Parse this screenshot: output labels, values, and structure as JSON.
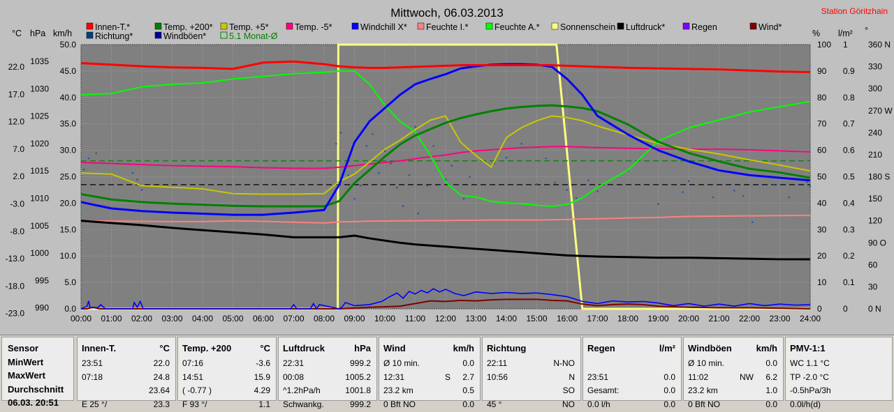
{
  "window": {
    "title": "Mittwoch, 06.03.2013",
    "station": "Station Göritzhain"
  },
  "chart_data": {
    "type": "line",
    "title": "Mittwoch, 06.03.2013",
    "x_ticks": [
      "00:00",
      "01:00",
      "02:00",
      "03:00",
      "04:00",
      "05:00",
      "06:00",
      "07:00",
      "08:00",
      "09:00",
      "10:00",
      "11:00",
      "12:00",
      "13:00",
      "14:00",
      "15:00",
      "16:00",
      "17:00",
      "18:00",
      "19:00",
      "20:00",
      "21:00",
      "22:00",
      "23:00",
      "24:00"
    ],
    "axes": {
      "celsius": {
        "label": "°C",
        "ticks": [
          "22.0",
          "17.0",
          "12.0",
          "7.0",
          "2.0",
          "-3.0",
          "-8.0",
          "-13.0",
          "-18.0",
          "-23.0"
        ],
        "range": [
          -23,
          27
        ]
      },
      "hpa": {
        "label": "hPa",
        "ticks": [
          "1035",
          "1030",
          "1025",
          "1020",
          "1015",
          "1010",
          "1005",
          "1000",
          "995",
          "990"
        ],
        "range": [
          990,
          1038
        ]
      },
      "kmh": {
        "label": "km/h",
        "ticks": [
          "50.0",
          "45.0",
          "40.0",
          "35.0",
          "30.0",
          "25.0",
          "20.0",
          "15.0",
          "10.0",
          "5.0",
          "0.0"
        ],
        "range": [
          0,
          50
        ]
      },
      "percent": {
        "label": "%",
        "ticks": [
          "100",
          "90",
          "80",
          "70",
          "60",
          "50",
          "40",
          "30",
          "20",
          "10",
          "0"
        ],
        "range": [
          0,
          100
        ]
      },
      "rain": {
        "label": "l/m²",
        "ticks": [
          "1",
          "0.9",
          "0.8",
          "0.7",
          "0.6",
          "0.5",
          "0.4",
          "0.3",
          "0.2",
          "0.1",
          "0"
        ],
        "range": [
          0,
          1
        ]
      },
      "direction": {
        "label": "°",
        "ticks": [
          "360 N",
          "330",
          "300",
          "270 W",
          "240",
          "210",
          "180 S",
          "150",
          "120",
          "90 O",
          "60",
          "30",
          "0 N"
        ],
        "range": [
          0,
          360
        ]
      }
    },
    "legend": {
      "row1": [
        {
          "name": "Innen-T.*",
          "color": "#ff0000"
        },
        {
          "name": "Temp. +200*",
          "color": "#008000"
        },
        {
          "name": "Temp. +5*",
          "color": "#c8c800"
        },
        {
          "name": "Temp. -5*",
          "color": "#ff0080"
        },
        {
          "name": "Windchill X*",
          "color": "#0000ff"
        },
        {
          "name": "Feuchte I.*",
          "color": "#ff8080"
        },
        {
          "name": "Feuchte A.*",
          "color": "#00ff00"
        },
        {
          "name": "Sonnenschein",
          "color": "#ffff80"
        },
        {
          "name": "Luftdruck*",
          "color": "#000000"
        },
        {
          "name": "Regen",
          "color": "#8000ff"
        },
        {
          "name": "Wind*",
          "color": "#800000"
        }
      ],
      "row2": [
        {
          "name": "Richtung*",
          "color": "#004080"
        },
        {
          "name": "Windböen*",
          "color": "#0000a0"
        },
        {
          "name": "5.1 Monat-Ø",
          "color": "#008000"
        }
      ]
    },
    "x_hours": [
      0,
      1,
      2,
      3,
      4,
      5,
      6,
      7,
      8,
      8.5,
      9,
      9.5,
      10,
      10.5,
      11,
      11.5,
      12,
      12.5,
      13,
      13.5,
      14,
      14.5,
      15,
      15.5,
      16,
      16.5,
      17,
      18,
      19,
      20,
      21,
      22,
      23,
      24
    ],
    "series": [
      {
        "name": "Innen-T.*",
        "axis": "celsius",
        "color": "#ff0000",
        "y": [
          23.5,
          23.2,
          22.9,
          22.7,
          22.6,
          22.4,
          23.6,
          23.8,
          23.3,
          22.9,
          22.7,
          22.6,
          22.6,
          22.7,
          22.8,
          22.9,
          23.0,
          23.1,
          23.1,
          23.1,
          23.1,
          23.1,
          23.1,
          23.1,
          23.0,
          22.9,
          22.8,
          22.6,
          22.5,
          22.4,
          22.3,
          22.1,
          21.9,
          21.8
        ]
      },
      {
        "name": "Temp. +200*",
        "axis": "celsius",
        "color": "#008000",
        "y": [
          -1.3,
          -2.3,
          -2.8,
          -3.1,
          -3.3,
          -3.5,
          -3.6,
          -3.6,
          -3.6,
          -2.6,
          0.8,
          3.3,
          5.8,
          8.1,
          9.8,
          11.0,
          12.2,
          13.1,
          13.8,
          14.4,
          14.9,
          15.2,
          15.4,
          15.5,
          15.3,
          15.0,
          14.4,
          11.9,
          8.6,
          6.5,
          4.9,
          3.5,
          2.8,
          1.8
        ]
      },
      {
        "name": "Temp. +5*",
        "axis": "celsius",
        "color": "#c8c800",
        "y": [
          2.7,
          2.5,
          0.3,
          0.0,
          -0.3,
          -1.2,
          -1.3,
          -1.3,
          -1.2,
          1.1,
          2.5,
          4.8,
          7.2,
          8.9,
          10.9,
          12.7,
          13.5,
          8.5,
          6.0,
          3.8,
          9.4,
          11.3,
          12.6,
          13.5,
          13.2,
          12.6,
          11.6,
          9.9,
          8.3,
          7.2,
          6.3,
          5.2,
          4.2,
          3.1
        ]
      },
      {
        "name": "Temp. -5*",
        "axis": "celsius",
        "color": "#ff0080",
        "y": [
          4.7,
          4.5,
          4.3,
          4.1,
          4.0,
          3.9,
          3.7,
          3.6,
          3.6,
          3.8,
          4.1,
          4.4,
          4.7,
          5.0,
          5.4,
          5.8,
          6.1,
          6.6,
          6.9,
          7.1,
          7.3,
          7.5,
          7.6,
          7.7,
          7.7,
          7.6,
          7.5,
          7.4,
          7.3,
          7.2,
          7.2,
          7.1,
          6.9,
          6.7
        ]
      },
      {
        "name": "Windchill X*",
        "axis": "celsius",
        "color": "#0000ff",
        "y": [
          -2.8,
          -4.0,
          -4.5,
          -4.8,
          -5.0,
          -5.2,
          -5.2,
          -4.8,
          -4.3,
          0.5,
          8.5,
          12.5,
          15.0,
          17.5,
          19.5,
          20.5,
          21.4,
          22.5,
          22.9,
          23.2,
          23.3,
          23.3,
          23.2,
          22.8,
          20.5,
          17.5,
          13.5,
          10.0,
          7.0,
          4.9,
          3.2,
          2.3,
          1.8,
          1.3
        ]
      },
      {
        "name": "Feuchte I.*",
        "axis": "percent",
        "color": "#ff8080",
        "y": [
          33.2,
          33.2,
          33.1,
          33.0,
          33.0,
          33.3,
          33.1,
          32.8,
          32.5,
          32.9,
          33.0,
          33.2,
          33.2,
          33.3,
          33.3,
          33.4,
          33.4,
          33.5,
          33.5,
          33.6,
          33.6,
          33.6,
          33.6,
          33.7,
          33.8,
          34.0,
          34.1,
          34.4,
          34.6,
          35.0,
          35.1,
          35.2,
          35.3,
          35.4
        ]
      },
      {
        "name": "Feuchte A.*",
        "axis": "percent",
        "color": "#00ff00",
        "y": [
          81,
          81.5,
          84,
          85,
          85.5,
          87,
          88,
          89,
          89.5,
          90,
          90,
          85,
          77,
          71,
          67,
          58,
          48,
          43,
          42.3,
          40.7,
          40.1,
          39.8,
          39.2,
          38.8,
          39.5,
          42,
          46,
          52.5,
          63.5,
          68.5,
          71.5,
          74.5,
          76.5,
          78.5
        ]
      },
      {
        "name": "Luftdruck*",
        "axis": "hpa",
        "color": "#000000",
        "y": [
          1006.0,
          1005.6,
          1005.2,
          1004.7,
          1004.3,
          1003.9,
          1003.5,
          1003.0,
          1003.0,
          1003.0,
          1003.3,
          1002.8,
          1002.4,
          1002.0,
          1001.7,
          1001.5,
          1001.3,
          1001.1,
          1000.9,
          1000.7,
          1000.5,
          1000.3,
          1000.1,
          999.9,
          999.7,
          999.6,
          999.5,
          999.4,
          999.3,
          999.3,
          999.2,
          999.1,
          999.0,
          999.0
        ]
      }
    ],
    "sunshine": {
      "name": "Sonnenschein",
      "axis": "percent",
      "color": "#ffff80",
      "x": [
        0,
        8.45,
        8.47,
        15.65,
        16.5,
        24
      ],
      "y": [
        0,
        0,
        100,
        100,
        0,
        0
      ]
    },
    "wind": {
      "name": "Wind*",
      "axis": "kmh",
      "color": "#800000",
      "x": [
        0,
        0.2,
        0.4,
        0.6,
        1.7,
        2,
        8.5,
        9.5,
        10.5,
        11.0,
        11.5,
        12,
        12.5,
        13,
        13.5,
        14,
        14.5,
        15,
        15.5,
        16,
        16.5,
        17,
        17.5,
        18,
        18.5,
        19,
        20,
        21,
        22,
        23,
        24
      ],
      "y": [
        0,
        0,
        0.3,
        0,
        0,
        0,
        0,
        0.3,
        0.5,
        1.0,
        1.5,
        1.4,
        1.6,
        1.5,
        1.7,
        1.8,
        1.8,
        1.8,
        1.6,
        1.5,
        0.9,
        0.6,
        0.8,
        0.9,
        0.8,
        0.5,
        0.3,
        0.2,
        0.2,
        0.1,
        0
      ]
    },
    "gusts": {
      "name": "Windböen*",
      "axis": "kmh",
      "color": "#0000ff",
      "x": [
        0,
        0.2,
        0.25,
        0.3,
        0.55,
        0.65,
        0.8,
        1.7,
        1.75,
        1.85,
        1.95,
        2.05,
        6.9,
        7.0,
        7.1,
        7.55,
        7.65,
        7.75,
        7.85,
        8.5,
        8.6,
        8.7,
        9.0,
        9.5,
        9.9,
        10.1,
        10.4,
        10.6,
        10.8,
        11.0,
        11.2,
        11.4,
        11.6,
        11.8,
        12.0,
        12.3,
        12.6,
        13.0,
        13.5,
        14.0,
        14.5,
        15.0,
        15.5,
        16.0,
        16.5,
        17.0,
        17.5,
        18.0,
        18.5,
        19.0,
        19.5,
        20.0,
        20.5,
        21.0,
        21.5,
        22.0,
        22.5,
        23.0,
        23.5,
        24
      ],
      "y": [
        0,
        0.5,
        1.5,
        0.2,
        0.2,
        0.8,
        0,
        0,
        1.2,
        0.3,
        1.4,
        0,
        0,
        0.8,
        0,
        0,
        1.0,
        0,
        0.8,
        0,
        0.4,
        1.2,
        0.6,
        0.8,
        1.4,
        2.1,
        3.0,
        2.0,
        3.3,
        2.8,
        3.5,
        3.0,
        3.8,
        3.2,
        3.7,
        2.9,
        2.5,
        3.2,
        2.9,
        3.1,
        2.9,
        3.0,
        2.7,
        2.3,
        1.4,
        1.0,
        1.5,
        1.3,
        1.4,
        1.1,
        0.6,
        1.0,
        0.5,
        0.9,
        0.5,
        1.0,
        0.6,
        0.9,
        0.7,
        0.8
      ]
    },
    "direction_points": [
      [
        0.1,
        190
      ],
      [
        0.25,
        205
      ],
      [
        0.5,
        212
      ],
      [
        1.7,
        185
      ],
      [
        1.85,
        176
      ],
      [
        2.0,
        162
      ],
      [
        8.4,
        225
      ],
      [
        8.55,
        240
      ],
      [
        8.8,
        182
      ],
      [
        9.0,
        150
      ],
      [
        9.2,
        168
      ],
      [
        9.4,
        222
      ],
      [
        9.6,
        238
      ],
      [
        9.8,
        185
      ],
      [
        10.0,
        215
      ],
      [
        10.2,
        198
      ],
      [
        10.4,
        165
      ],
      [
        10.6,
        140
      ],
      [
        10.8,
        182
      ],
      [
        11.0,
        248
      ],
      [
        11.1,
        130
      ],
      [
        11.2,
        120
      ],
      [
        11.4,
        168
      ],
      [
        11.6,
        222
      ],
      [
        11.8,
        250
      ],
      [
        12.0,
        176
      ],
      [
        12.2,
        195
      ],
      [
        12.4,
        234
      ],
      [
        12.6,
        150
      ],
      [
        12.8,
        180
      ],
      [
        13.0,
        215
      ],
      [
        13.3,
        200
      ],
      [
        13.6,
        198
      ],
      [
        14.0,
        206
      ],
      [
        14.5,
        225
      ],
      [
        15.0,
        170
      ],
      [
        15.3,
        205
      ],
      [
        15.6,
        172
      ],
      [
        16.0,
        162
      ],
      [
        16.3,
        151
      ],
      [
        16.7,
        175
      ],
      [
        17.0,
        160
      ],
      [
        18.0,
        188
      ],
      [
        19.0,
        143
      ],
      [
        19.8,
        159
      ],
      [
        20.0,
        174
      ],
      [
        20.8,
        152
      ],
      [
        21.5,
        161
      ],
      [
        21.8,
        154
      ],
      [
        22.1,
        118
      ],
      [
        22.8,
        169
      ],
      [
        23.3,
        152
      ],
      [
        23.9,
        173
      ],
      [
        24.0,
        167
      ]
    ],
    "reference_lines": [
      {
        "name": "5.1 Monat-Ø",
        "axis": "celsius",
        "value": 5.0,
        "color": "#008000"
      },
      {
        "axis": "celsius",
        "value": 0.5,
        "color": "#000000"
      }
    ],
    "grid": true
  },
  "stats": {
    "row_labels": {
      "header": "Sensor",
      "min": "MinWert",
      "max": "MaxWert",
      "avg": "Durchschnitt",
      "last": "06.03. 20:51"
    },
    "panels": [
      {
        "title": "Innen-T.",
        "unit": "°C",
        "rows": [
          [
            "23:51",
            "",
            "22.0"
          ],
          [
            "07:18",
            "",
            "24.8"
          ],
          [
            "",
            "",
            "23.64"
          ],
          [
            "E 25 °/",
            "",
            "23.3"
          ]
        ]
      },
      {
        "title": "Temp. +200",
        "unit": "°C",
        "rows": [
          [
            "07:16",
            "",
            "-3.6"
          ],
          [
            "14:51",
            "",
            "15.9"
          ],
          [
            "( -0.77 )",
            "",
            "4.29"
          ],
          [
            "F 93 °/",
            "",
            "1.1"
          ]
        ]
      },
      {
        "title": "Luftdruck",
        "unit": "hPa",
        "rows": [
          [
            "22:31",
            "",
            "999.2"
          ],
          [
            "00:08",
            "",
            "1005.2"
          ],
          [
            "^1.2hPa/h",
            "",
            "1001.8"
          ],
          [
            "Schwankg.",
            "",
            "999.2"
          ]
        ]
      },
      {
        "title": "Wind",
        "unit": "km/h",
        "rows": [
          [
            "Ø 10 min.",
            "",
            "0.0"
          ],
          [
            "12:31",
            "S",
            "2.7"
          ],
          [
            "23.2 km",
            "",
            "0.5"
          ],
          [
            "0 Bft NO",
            "",
            "0.0"
          ]
        ]
      },
      {
        "title": "Richtung",
        "unit": "",
        "rows": [
          [
            "22:11",
            "",
            "N-NO"
          ],
          [
            "10:56",
            "",
            "N"
          ],
          [
            "",
            "",
            "SO"
          ],
          [
            "45 °",
            "",
            "NO"
          ]
        ]
      },
      {
        "title": "Regen",
        "unit": "l/m²",
        "rows": [
          [
            "",
            "",
            ""
          ],
          [
            "23:51",
            "",
            "0.0"
          ],
          [
            "Gesamt:",
            "",
            "0.0"
          ],
          [
            "0.0 l/h",
            "",
            "0.0"
          ]
        ]
      },
      {
        "title": "Windböen",
        "unit": "km/h",
        "rows": [
          [
            "Ø 10 min.",
            "",
            "0.0"
          ],
          [
            "11:02",
            "NW",
            "6.2"
          ],
          [
            "23.2 km",
            "",
            "1.0"
          ],
          [
            "0 Bft NO",
            "",
            "0.0"
          ]
        ]
      },
      {
        "title": "PMV-1:1",
        "unit": "",
        "rows": [
          [
            "WC 1.1 °C",
            "",
            ""
          ],
          [
            "TP -2.0 °C",
            "",
            ""
          ],
          [
            "-0.5hPa/3h",
            "",
            ""
          ],
          [
            "0.0l/h(d)",
            "",
            ""
          ]
        ]
      }
    ]
  }
}
